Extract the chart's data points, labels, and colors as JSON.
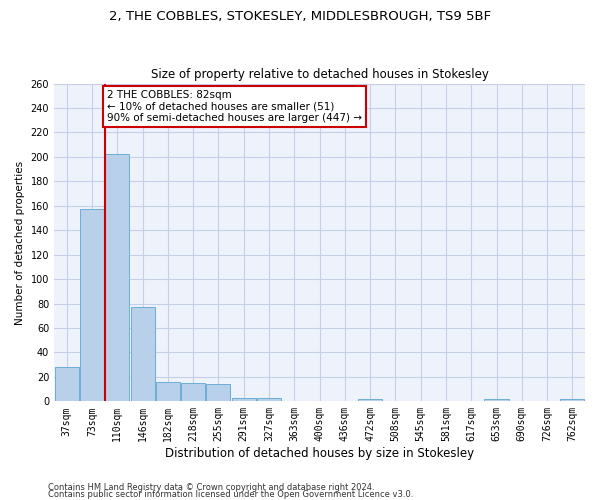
{
  "title": "2, THE COBBLES, STOKESLEY, MIDDLESBROUGH, TS9 5BF",
  "subtitle": "Size of property relative to detached houses in Stokesley",
  "xlabel": "Distribution of detached houses by size in Stokesley",
  "ylabel": "Number of detached properties",
  "categories": [
    "37sqm",
    "73sqm",
    "110sqm",
    "146sqm",
    "182sqm",
    "218sqm",
    "255sqm",
    "291sqm",
    "327sqm",
    "363sqm",
    "400sqm",
    "436sqm",
    "472sqm",
    "508sqm",
    "545sqm",
    "581sqm",
    "617sqm",
    "653sqm",
    "690sqm",
    "726sqm",
    "762sqm"
  ],
  "values": [
    28,
    157,
    202,
    77,
    16,
    15,
    14,
    3,
    3,
    0,
    0,
    0,
    2,
    0,
    0,
    0,
    0,
    2,
    0,
    0,
    2
  ],
  "bar_color": "#b8d0ea",
  "bar_edge_color": "#6baed6",
  "red_line_x": 1.5,
  "annotation_text": "2 THE COBBLES: 82sqm\n← 10% of detached houses are smaller (51)\n90% of semi-detached houses are larger (447) →",
  "annotation_box_color": "white",
  "annotation_box_edge_color": "#cc0000",
  "red_line_color": "#cc0000",
  "ylim": [
    0,
    260
  ],
  "yticks": [
    0,
    20,
    40,
    60,
    80,
    100,
    120,
    140,
    160,
    180,
    200,
    220,
    240,
    260
  ],
  "footnote1": "Contains HM Land Registry data © Crown copyright and database right 2024.",
  "footnote2": "Contains public sector information licensed under the Open Government Licence v3.0.",
  "bg_color": "#eef2fb",
  "grid_color": "#c5cfe8",
  "title_fontsize": 9.5,
  "subtitle_fontsize": 8.5,
  "tick_fontsize": 7,
  "ylabel_fontsize": 7.5,
  "xlabel_fontsize": 8.5,
  "annot_fontsize": 7.5
}
